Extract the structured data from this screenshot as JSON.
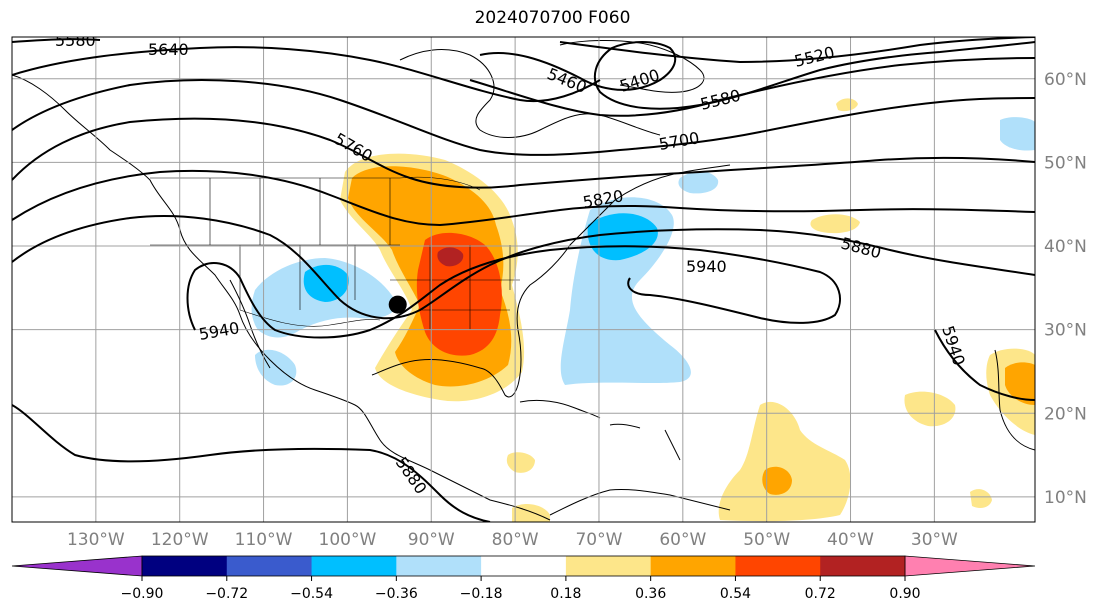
{
  "title": "2024070700 F060",
  "map": {
    "projection": "cylindrical",
    "lon_range": [
      -140,
      -18
    ],
    "lat_range": [
      7,
      65
    ],
    "lon_labels": [
      {
        "lon": -130,
        "text": "130°W"
      },
      {
        "lon": -120,
        "text": "120°W"
      },
      {
        "lon": -110,
        "text": "110°W"
      },
      {
        "lon": -100,
        "text": "100°W"
      },
      {
        "lon": -90,
        "text": "90°W"
      },
      {
        "lon": -80,
        "text": "80°W"
      },
      {
        "lon": -70,
        "text": "70°W"
      },
      {
        "lon": -60,
        "text": "60°W"
      },
      {
        "lon": -50,
        "text": "50°W"
      },
      {
        "lon": -40,
        "text": "40°W"
      },
      {
        "lon": -30,
        "text": "30°W"
      }
    ],
    "lat_labels": [
      {
        "lat": 60,
        "text": "60°N"
      },
      {
        "lat": 50,
        "text": "50°N"
      },
      {
        "lat": 40,
        "text": "40°N"
      },
      {
        "lat": 30,
        "text": "30°N"
      },
      {
        "lat": 20,
        "text": "20°N"
      },
      {
        "lat": 10,
        "text": "10°N"
      }
    ],
    "gridlines": true,
    "contour_labels": [
      "5580",
      "5640",
      "5460",
      "5400",
      "5520",
      "5580",
      "5700",
      "5760",
      "5820",
      "5880",
      "5940",
      "5940",
      "5880",
      "5940"
    ],
    "marker": {
      "lon": -94,
      "lat": 33
    }
  },
  "colorbar": {
    "ticks": [
      "−0.90",
      "−0.72",
      "−0.54",
      "−0.36",
      "−0.18",
      "0.18",
      "0.36",
      "0.54",
      "0.72",
      "0.90"
    ],
    "colors": [
      "#9932cc",
      "#000080",
      "#3a5bcd",
      "#00bfff",
      "#b0e0fa",
      "#ffffff",
      "#fde68a",
      "#ffa500",
      "#ff4500",
      "#b22222",
      "#ff80b0"
    ]
  }
}
